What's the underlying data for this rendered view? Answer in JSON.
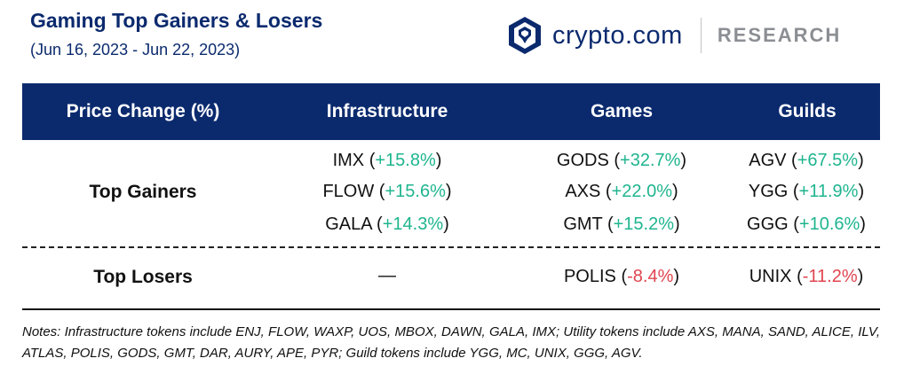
{
  "header": {
    "title": "Gaming Top Gainers & Losers",
    "subtitle": "(Jun 16, 2023 - Jun 22, 2023)",
    "brand_name": "crypto.com",
    "brand_section": "RESEARCH",
    "brand_icon": "crypto-com-lion-shield-icon",
    "brand_color": "#0b2a6e"
  },
  "table": {
    "columns": [
      "Price Change (%)",
      "Infrastructure",
      "Games",
      "Guilds"
    ],
    "gainers": {
      "label": "Top Gainers",
      "infrastructure": [
        {
          "token": "IMX",
          "change": "+15.8%"
        },
        {
          "token": "FLOW",
          "change": "+15.6%"
        },
        {
          "token": "GALA",
          "change": "+14.3%"
        }
      ],
      "games": [
        {
          "token": "GODS",
          "change": "+32.7%"
        },
        {
          "token": "AXS",
          "change": "+22.0%"
        },
        {
          "token": "GMT",
          "change": "+15.2%"
        }
      ],
      "guilds": [
        {
          "token": "AGV",
          "change": "+67.5%"
        },
        {
          "token": "YGG",
          "change": "+11.9%"
        },
        {
          "token": "GGG",
          "change": "+10.6%"
        }
      ]
    },
    "losers": {
      "label": "Top Losers",
      "infrastructure": "—",
      "games": {
        "token": "POLIS",
        "change": "-8.4%"
      },
      "guilds": {
        "token": "UNIX",
        "change": "-11.2%"
      }
    },
    "colors": {
      "positive": "#1fb58f",
      "negative": "#e0454f",
      "header_bg": "#0b2a6e"
    }
  },
  "notes": "Notes: Infrastructure tokens include ENJ, FLOW, WAXP, UOS, MBOX, DAWN, GALA, IMX; Utility tokens include AXS, MANA, SAND, ALICE, ILV, ATLAS, POLIS, GODS, GMT, DAR, AURY, APE, PYR; Guild tokens include YGG, MC, UNIX, GGG, AGV."
}
